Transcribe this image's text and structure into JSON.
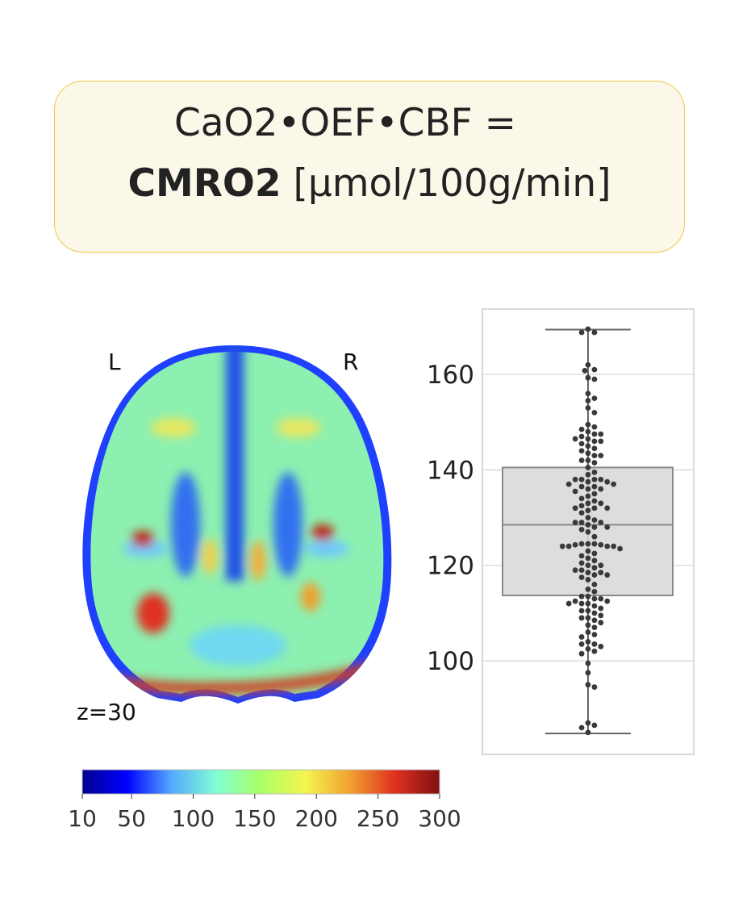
{
  "title": {
    "line1": "CaO2•OEF•CBF =",
    "bold": "CMRO2",
    "unit": " [μmol/100g/min]"
  },
  "brain_map": {
    "left_label": "L",
    "right_label": "R",
    "slice_label": "z=30",
    "colormap": "jet"
  },
  "chart_data": [
    {
      "type": "heatmap",
      "colorbar": {
        "range": [
          10,
          300
        ],
        "ticks": [
          10,
          50,
          100,
          150,
          200,
          250,
          300
        ],
        "tick_labels": [
          "10",
          "50",
          "100",
          "150",
          "200",
          "250",
          "300"
        ],
        "colors": [
          "#00008f",
          "#0000ff",
          "#55aaff",
          "#7fffd4",
          "#aaff66",
          "#f5f550",
          "#f0a030",
          "#e03020",
          "#7f1010"
        ]
      }
    },
    {
      "type": "box",
      "ylim": [
        80.4,
        173.7
      ],
      "yticks": [
        100,
        120,
        140,
        160
      ],
      "ytick_labels": [
        "100",
        "120",
        "140",
        "160"
      ],
      "grid": true,
      "box": {
        "whisker_low": 84.8,
        "q1": 113.7,
        "median": 128.5,
        "q3": 140.5,
        "whisker_high": 169.4
      },
      "box_color": "#d9d9d9",
      "point_color": "#3a3a3a",
      "points": [
        169.5,
        168.8,
        168.8,
        162,
        161,
        160.8,
        159.3,
        159,
        156,
        155,
        154.5,
        153,
        152,
        149.5,
        149,
        148.5,
        148,
        147.5,
        147.5,
        147,
        146.5,
        146.5,
        146,
        146,
        145.5,
        145,
        144.5,
        144,
        143.5,
        143,
        143,
        142,
        142,
        141.5,
        140.5,
        139.5,
        139,
        138,
        138,
        138,
        138,
        137.5,
        137.5,
        137,
        137,
        136.5,
        136.5,
        136,
        136,
        135.5,
        135,
        134.5,
        134,
        133.5,
        133,
        133,
        132.5,
        132,
        132,
        132,
        131.5,
        131,
        130,
        129.5,
        129,
        129,
        129,
        128.5,
        128,
        128,
        127.5,
        127,
        126,
        124.5,
        124.5,
        124.5,
        124.3,
        124.3,
        124,
        124,
        124,
        124,
        123.5,
        123,
        122.5,
        122,
        121.5,
        121,
        120.5,
        120,
        120,
        119.5,
        119,
        119,
        118.5,
        118.5,
        118,
        118,
        117.5,
        117,
        116,
        115,
        114.5,
        113.5,
        113.5,
        113,
        113,
        112.5,
        112.5,
        112,
        112,
        112,
        111.5,
        111,
        110.5,
        110.5,
        110,
        109.5,
        109,
        109,
        108.5,
        108,
        107.5,
        107,
        106,
        105.5,
        105,
        104,
        103.5,
        103.5,
        103,
        102.5,
        102,
        101.5,
        99.5,
        97.5,
        95,
        94.5,
        87,
        86.5,
        86,
        85
      ]
    }
  ]
}
